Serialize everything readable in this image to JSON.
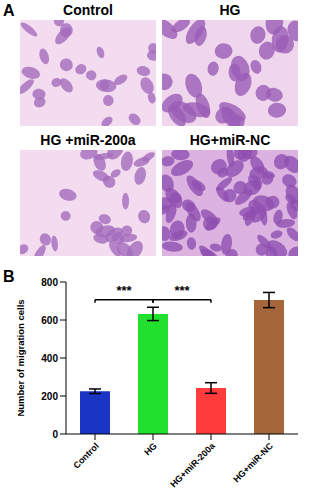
{
  "panel_a": {
    "label": "A",
    "images": [
      {
        "title": "Control"
      },
      {
        "title": "HG"
      },
      {
        "title": "HG +miR-200a"
      },
      {
        "title": "HG+miR-NC"
      }
    ]
  },
  "chart_data": {
    "type": "bar",
    "panel_label": "B",
    "ylabel": "Number of migration cells",
    "categories": [
      "Control",
      "HG",
      "HG+miR-200a",
      "HG+miR-NC"
    ],
    "values": [
      225,
      632,
      242,
      705
    ],
    "errors": [
      12,
      35,
      28,
      40
    ],
    "colors": [
      "#1a35c4",
      "#22e02e",
      "#ff3b3b",
      "#a5663a"
    ],
    "ylim": [
      0,
      800
    ],
    "yticks": [
      0,
      200,
      400,
      600,
      800
    ],
    "grid": false,
    "annotations": [
      {
        "text": "***",
        "between": [
          "Control",
          "HG"
        ]
      },
      {
        "text": "***",
        "between": [
          "HG",
          "HG+miR-200a"
        ]
      }
    ]
  }
}
